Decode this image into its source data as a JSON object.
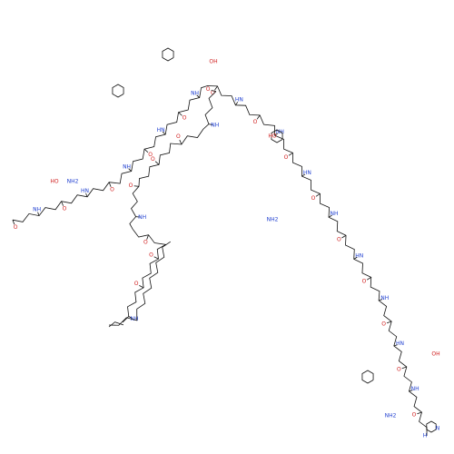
{
  "atoms": {
    "nitrogen": "N",
    "amide": "NH",
    "amide_left": "HN",
    "amine": "NH2",
    "oxygen": "O",
    "hydroxyl": "OH",
    "hydroxyl_left": "HO",
    "hydrogen": "H"
  }
}
